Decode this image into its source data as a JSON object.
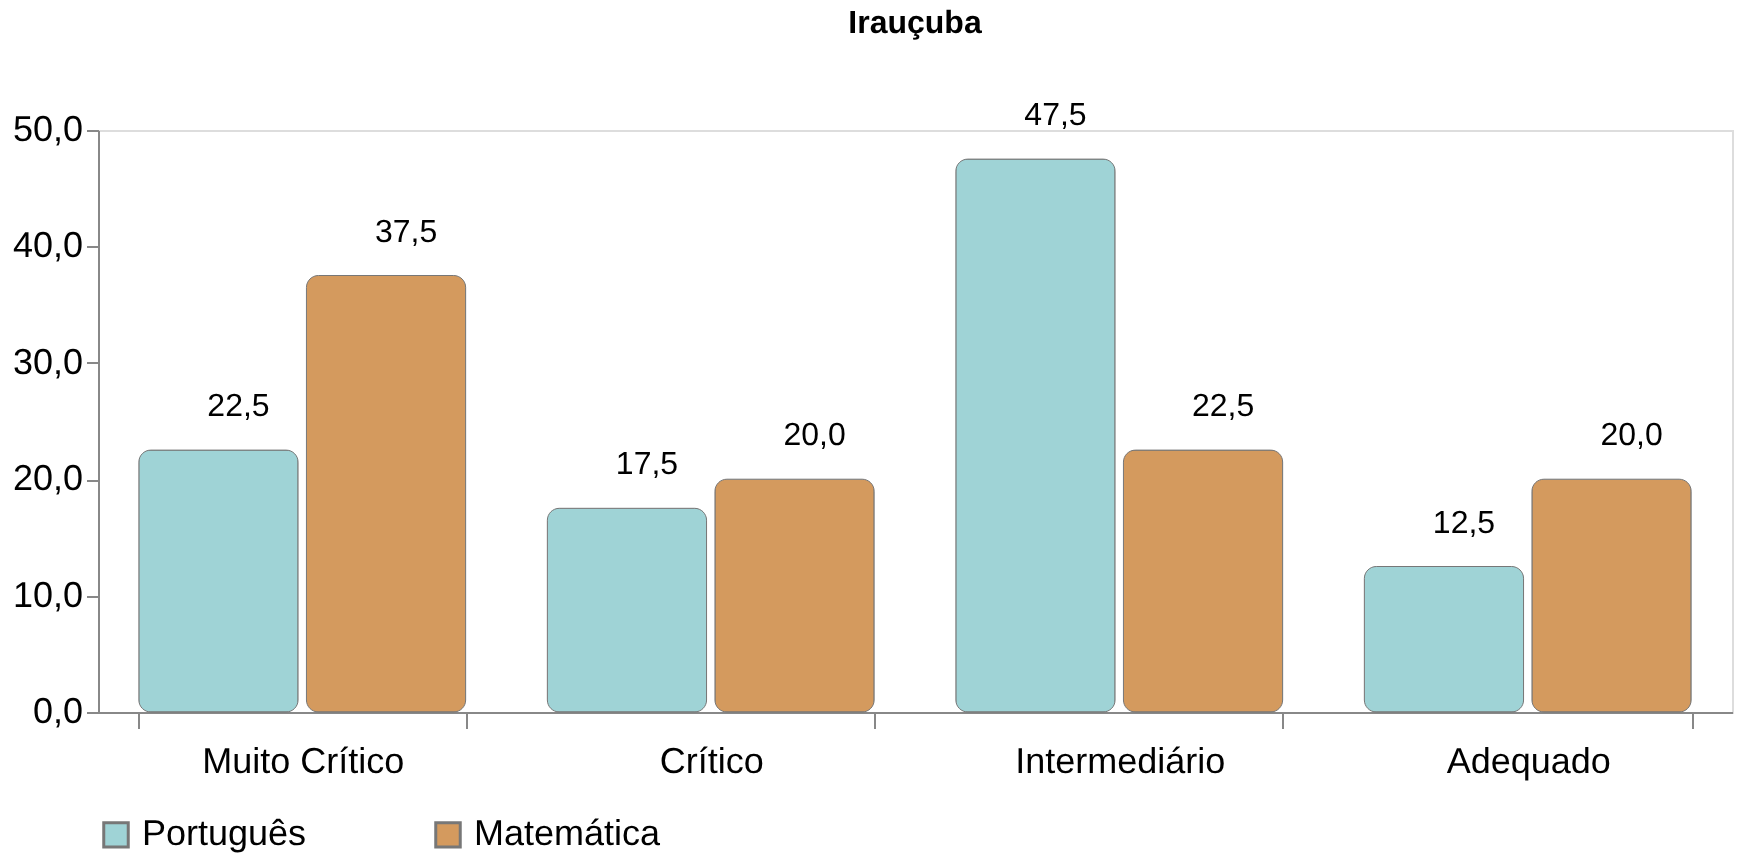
{
  "chart_data": {
    "type": "bar",
    "title": "Irauçuba",
    "categories": [
      "Muito Crítico",
      "Crítico",
      "Intermediário",
      "Adequado"
    ],
    "series": [
      {
        "name": "Português",
        "color": "#9fd3d6",
        "values": [
          22.5,
          17.5,
          47.5,
          12.5
        ],
        "value_labels": [
          "22,5",
          "17,5",
          "47,5",
          "12,5"
        ]
      },
      {
        "name": "Matemática",
        "color": "#d49a5e",
        "values": [
          37.5,
          20.0,
          22.5,
          20.0
        ],
        "value_labels": [
          "37,5",
          "20,0",
          "22,5",
          "20,0"
        ]
      }
    ],
    "ylim": [
      0,
      50
    ],
    "yticks": [
      {
        "value": 0,
        "label": "0,0"
      },
      {
        "value": 10,
        "label": "10,0"
      },
      {
        "value": 20,
        "label": "20,0"
      },
      {
        "value": 30,
        "label": "30,0"
      },
      {
        "value": 40,
        "label": "40,0"
      },
      {
        "value": 50,
        "label": "50,0"
      }
    ],
    "grid": false,
    "legend": "bottom"
  }
}
